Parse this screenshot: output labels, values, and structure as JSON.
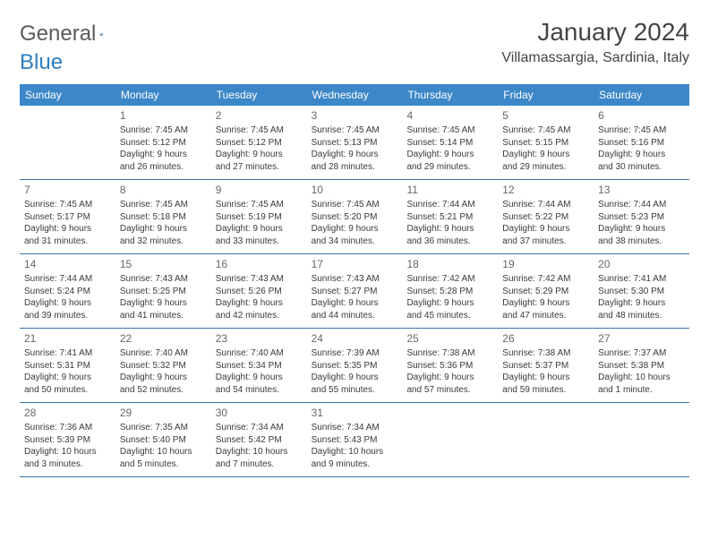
{
  "brand": {
    "text1": "General",
    "text2": "Blue"
  },
  "title": "January 2024",
  "location": "Villamassargia, Sardinia, Italy",
  "colors": {
    "header_bg": "#3b87c8",
    "header_text": "#ffffff",
    "rule": "#3973a7",
    "body_text": "#3a3a3a",
    "daynum": "#666666",
    "title_text": "#444444"
  },
  "day_names": [
    "Sunday",
    "Monday",
    "Tuesday",
    "Wednesday",
    "Thursday",
    "Friday",
    "Saturday"
  ],
  "weeks": [
    [
      {
        "n": "",
        "empty": true
      },
      {
        "n": "1",
        "sunrise": "Sunrise: 7:45 AM",
        "sunset": "Sunset: 5:12 PM",
        "d1": "Daylight: 9 hours",
        "d2": "and 26 minutes."
      },
      {
        "n": "2",
        "sunrise": "Sunrise: 7:45 AM",
        "sunset": "Sunset: 5:12 PM",
        "d1": "Daylight: 9 hours",
        "d2": "and 27 minutes."
      },
      {
        "n": "3",
        "sunrise": "Sunrise: 7:45 AM",
        "sunset": "Sunset: 5:13 PM",
        "d1": "Daylight: 9 hours",
        "d2": "and 28 minutes."
      },
      {
        "n": "4",
        "sunrise": "Sunrise: 7:45 AM",
        "sunset": "Sunset: 5:14 PM",
        "d1": "Daylight: 9 hours",
        "d2": "and 29 minutes."
      },
      {
        "n": "5",
        "sunrise": "Sunrise: 7:45 AM",
        "sunset": "Sunset: 5:15 PM",
        "d1": "Daylight: 9 hours",
        "d2": "and 29 minutes."
      },
      {
        "n": "6",
        "sunrise": "Sunrise: 7:45 AM",
        "sunset": "Sunset: 5:16 PM",
        "d1": "Daylight: 9 hours",
        "d2": "and 30 minutes."
      }
    ],
    [
      {
        "n": "7",
        "sunrise": "Sunrise: 7:45 AM",
        "sunset": "Sunset: 5:17 PM",
        "d1": "Daylight: 9 hours",
        "d2": "and 31 minutes."
      },
      {
        "n": "8",
        "sunrise": "Sunrise: 7:45 AM",
        "sunset": "Sunset: 5:18 PM",
        "d1": "Daylight: 9 hours",
        "d2": "and 32 minutes."
      },
      {
        "n": "9",
        "sunrise": "Sunrise: 7:45 AM",
        "sunset": "Sunset: 5:19 PM",
        "d1": "Daylight: 9 hours",
        "d2": "and 33 minutes."
      },
      {
        "n": "10",
        "sunrise": "Sunrise: 7:45 AM",
        "sunset": "Sunset: 5:20 PM",
        "d1": "Daylight: 9 hours",
        "d2": "and 34 minutes."
      },
      {
        "n": "11",
        "sunrise": "Sunrise: 7:44 AM",
        "sunset": "Sunset: 5:21 PM",
        "d1": "Daylight: 9 hours",
        "d2": "and 36 minutes."
      },
      {
        "n": "12",
        "sunrise": "Sunrise: 7:44 AM",
        "sunset": "Sunset: 5:22 PM",
        "d1": "Daylight: 9 hours",
        "d2": "and 37 minutes."
      },
      {
        "n": "13",
        "sunrise": "Sunrise: 7:44 AM",
        "sunset": "Sunset: 5:23 PM",
        "d1": "Daylight: 9 hours",
        "d2": "and 38 minutes."
      }
    ],
    [
      {
        "n": "14",
        "sunrise": "Sunrise: 7:44 AM",
        "sunset": "Sunset: 5:24 PM",
        "d1": "Daylight: 9 hours",
        "d2": "and 39 minutes."
      },
      {
        "n": "15",
        "sunrise": "Sunrise: 7:43 AM",
        "sunset": "Sunset: 5:25 PM",
        "d1": "Daylight: 9 hours",
        "d2": "and 41 minutes."
      },
      {
        "n": "16",
        "sunrise": "Sunrise: 7:43 AM",
        "sunset": "Sunset: 5:26 PM",
        "d1": "Daylight: 9 hours",
        "d2": "and 42 minutes."
      },
      {
        "n": "17",
        "sunrise": "Sunrise: 7:43 AM",
        "sunset": "Sunset: 5:27 PM",
        "d1": "Daylight: 9 hours",
        "d2": "and 44 minutes."
      },
      {
        "n": "18",
        "sunrise": "Sunrise: 7:42 AM",
        "sunset": "Sunset: 5:28 PM",
        "d1": "Daylight: 9 hours",
        "d2": "and 45 minutes."
      },
      {
        "n": "19",
        "sunrise": "Sunrise: 7:42 AM",
        "sunset": "Sunset: 5:29 PM",
        "d1": "Daylight: 9 hours",
        "d2": "and 47 minutes."
      },
      {
        "n": "20",
        "sunrise": "Sunrise: 7:41 AM",
        "sunset": "Sunset: 5:30 PM",
        "d1": "Daylight: 9 hours",
        "d2": "and 48 minutes."
      }
    ],
    [
      {
        "n": "21",
        "sunrise": "Sunrise: 7:41 AM",
        "sunset": "Sunset: 5:31 PM",
        "d1": "Daylight: 9 hours",
        "d2": "and 50 minutes."
      },
      {
        "n": "22",
        "sunrise": "Sunrise: 7:40 AM",
        "sunset": "Sunset: 5:32 PM",
        "d1": "Daylight: 9 hours",
        "d2": "and 52 minutes."
      },
      {
        "n": "23",
        "sunrise": "Sunrise: 7:40 AM",
        "sunset": "Sunset: 5:34 PM",
        "d1": "Daylight: 9 hours",
        "d2": "and 54 minutes."
      },
      {
        "n": "24",
        "sunrise": "Sunrise: 7:39 AM",
        "sunset": "Sunset: 5:35 PM",
        "d1": "Daylight: 9 hours",
        "d2": "and 55 minutes."
      },
      {
        "n": "25",
        "sunrise": "Sunrise: 7:38 AM",
        "sunset": "Sunset: 5:36 PM",
        "d1": "Daylight: 9 hours",
        "d2": "and 57 minutes."
      },
      {
        "n": "26",
        "sunrise": "Sunrise: 7:38 AM",
        "sunset": "Sunset: 5:37 PM",
        "d1": "Daylight: 9 hours",
        "d2": "and 59 minutes."
      },
      {
        "n": "27",
        "sunrise": "Sunrise: 7:37 AM",
        "sunset": "Sunset: 5:38 PM",
        "d1": "Daylight: 10 hours",
        "d2": "and 1 minute."
      }
    ],
    [
      {
        "n": "28",
        "sunrise": "Sunrise: 7:36 AM",
        "sunset": "Sunset: 5:39 PM",
        "d1": "Daylight: 10 hours",
        "d2": "and 3 minutes."
      },
      {
        "n": "29",
        "sunrise": "Sunrise: 7:35 AM",
        "sunset": "Sunset: 5:40 PM",
        "d1": "Daylight: 10 hours",
        "d2": "and 5 minutes."
      },
      {
        "n": "30",
        "sunrise": "Sunrise: 7:34 AM",
        "sunset": "Sunset: 5:42 PM",
        "d1": "Daylight: 10 hours",
        "d2": "and 7 minutes."
      },
      {
        "n": "31",
        "sunrise": "Sunrise: 7:34 AM",
        "sunset": "Sunset: 5:43 PM",
        "d1": "Daylight: 10 hours",
        "d2": "and 9 minutes."
      },
      {
        "n": "",
        "empty": true
      },
      {
        "n": "",
        "empty": true
      },
      {
        "n": "",
        "empty": true
      }
    ]
  ]
}
